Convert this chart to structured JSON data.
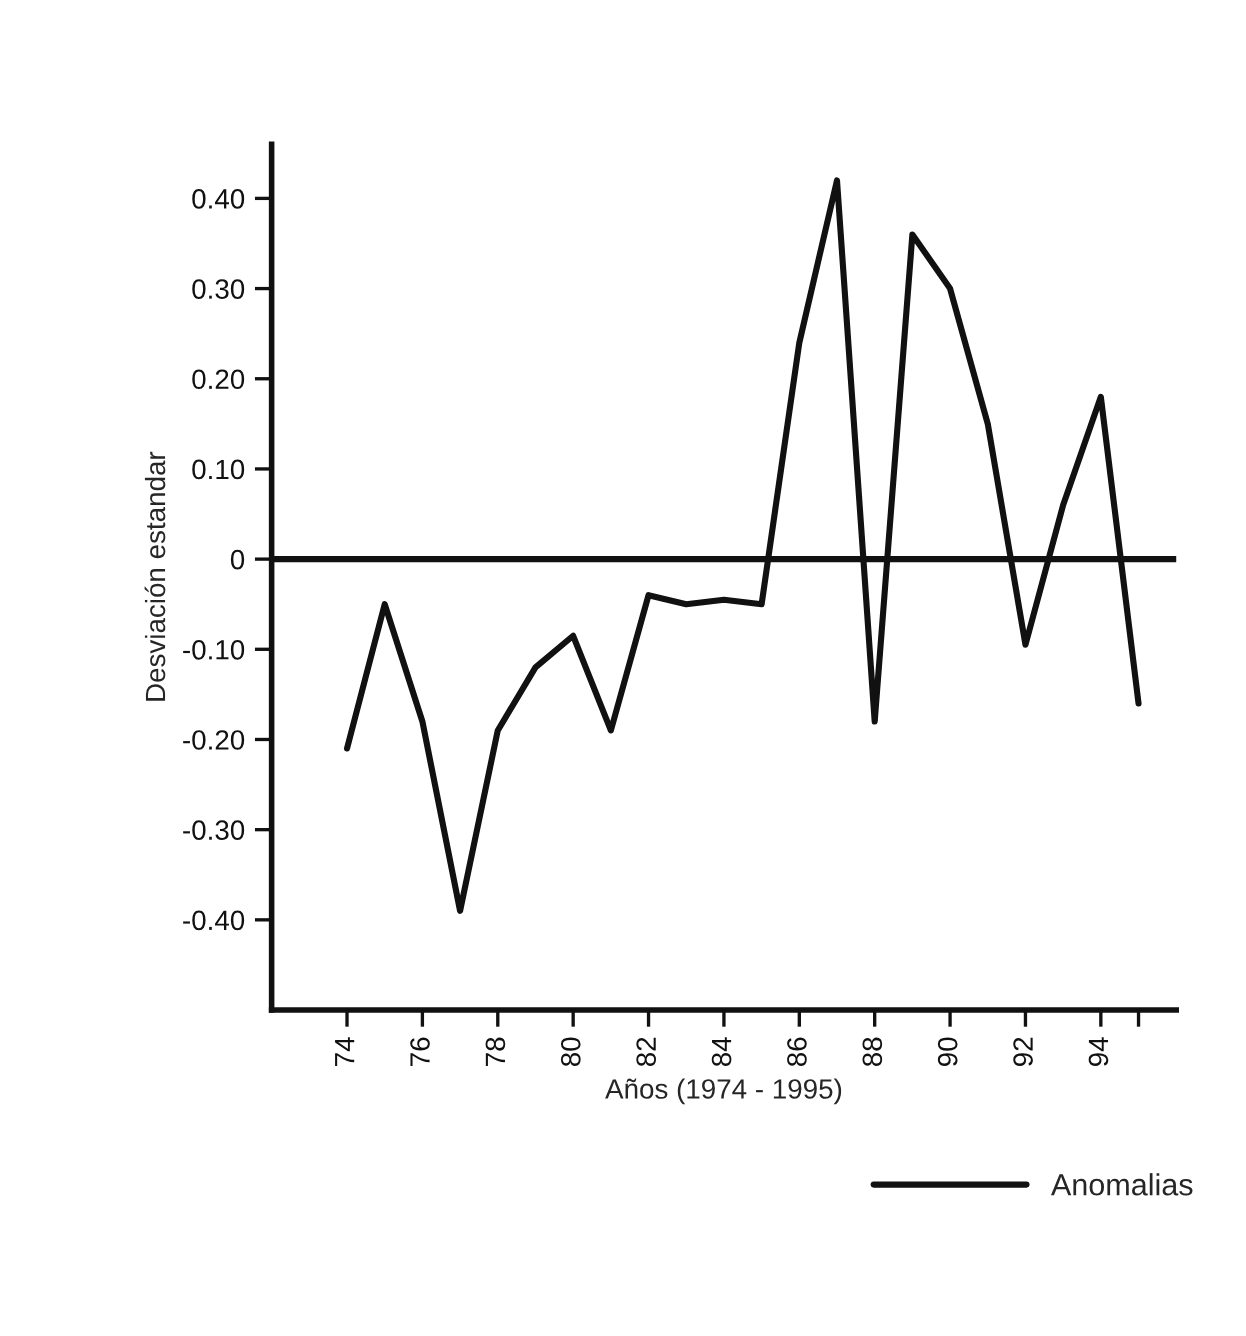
{
  "chart_data": {
    "type": "line",
    "xlabel": "Años (1974 - 1995)",
    "ylabel": "Desviación estandar",
    "x": [
      74,
      75,
      76,
      77,
      78,
      79,
      80,
      81,
      82,
      83,
      84,
      85,
      86,
      87,
      88,
      89,
      90,
      91,
      92,
      93,
      94,
      95
    ],
    "series": [
      {
        "name": "Anomalias",
        "color": "#111111",
        "values": [
          -0.21,
          -0.05,
          -0.18,
          -0.39,
          -0.19,
          -0.12,
          -0.085,
          -0.19,
          -0.04,
          -0.05,
          -0.045,
          -0.05,
          0.24,
          0.42,
          -0.18,
          0.36,
          0.3,
          0.15,
          -0.095,
          0.06,
          0.18,
          -0.16
        ]
      }
    ],
    "xlim": [
      72,
      96
    ],
    "ylim": [
      -0.5,
      0.46
    ],
    "xticks": [
      74,
      76,
      78,
      80,
      82,
      84,
      86,
      88,
      90,
      92,
      94,
      {
        "value": 95,
        "label": null
      }
    ],
    "yticks": [
      {
        "value": -0.4,
        "label": "-0.40"
      },
      {
        "value": -0.3,
        "label": "-0.30"
      },
      {
        "value": -0.2,
        "label": "-0.20"
      },
      {
        "value": -0.1,
        "label": "-0.10"
      },
      0,
      {
        "value": 0.1,
        "label": "0.10"
      },
      {
        "value": 0.2,
        "label": "0.20"
      },
      {
        "value": 0.3,
        "label": "0.30"
      },
      {
        "value": 0.4,
        "label": "0.40"
      }
    ],
    "ref_lines": [
      {
        "axis": "y",
        "value": 0,
        "color": "#111111"
      }
    ],
    "grid": false,
    "legend": "bottom right",
    "marker": "none",
    "line_style": "solid"
  }
}
